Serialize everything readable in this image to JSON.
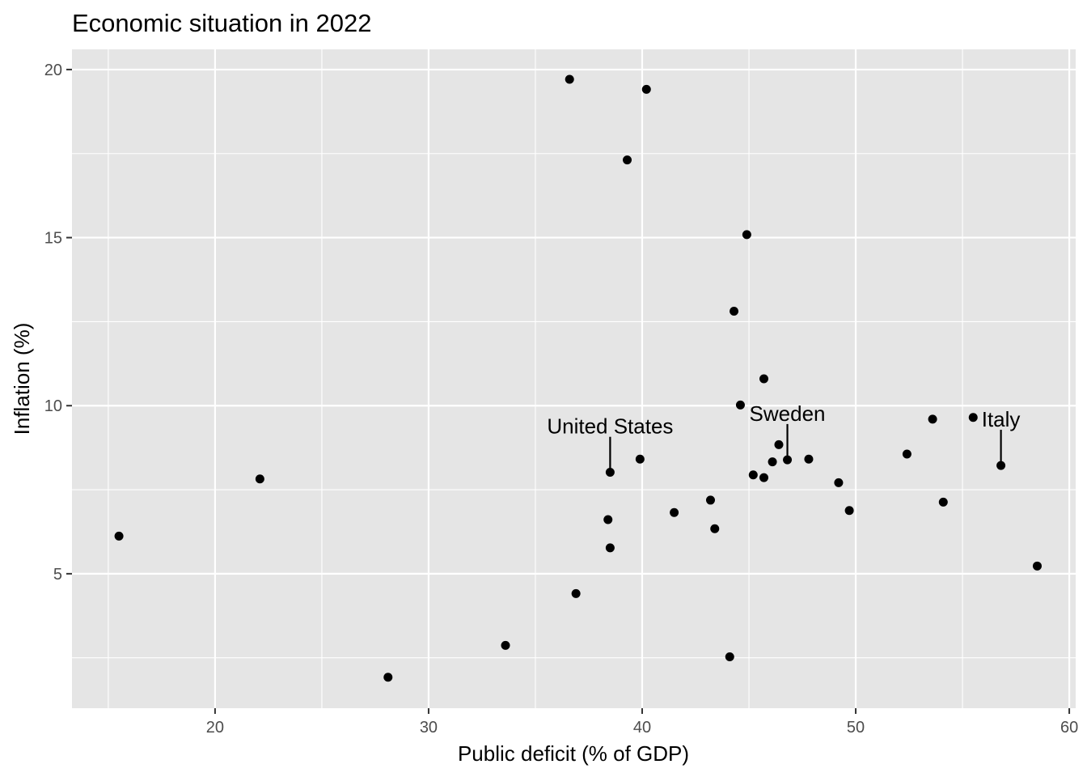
{
  "chart_data": {
    "type": "scatter",
    "title": "Economic situation in 2022",
    "xlabel": "Public deficit (% of GDP)",
    "ylabel": "Inflation (%)",
    "xlim": [
      13.3,
      60.3
    ],
    "ylim": [
      1.0,
      20.6
    ],
    "xticks": [
      20,
      30,
      40,
      50,
      60
    ],
    "yticks": [
      5,
      10,
      15,
      20
    ],
    "grid": true,
    "colors": {
      "panel": "#e5e5e5",
      "grid": "#ffffff",
      "point": "#000000",
      "ticks": "#4d4d4d"
    },
    "points": [
      {
        "x": 15.5,
        "y": 6.12
      },
      {
        "x": 22.1,
        "y": 7.82
      },
      {
        "x": 28.1,
        "y": 1.92
      },
      {
        "x": 33.6,
        "y": 2.87
      },
      {
        "x": 36.6,
        "y": 19.71
      },
      {
        "x": 36.9,
        "y": 4.41
      },
      {
        "x": 38.4,
        "y": 6.61
      },
      {
        "x": 38.5,
        "y": 8.02
      },
      {
        "x": 38.5,
        "y": 5.77
      },
      {
        "x": 39.3,
        "y": 17.31
      },
      {
        "x": 39.9,
        "y": 8.41
      },
      {
        "x": 40.2,
        "y": 19.41
      },
      {
        "x": 41.5,
        "y": 6.82
      },
      {
        "x": 43.2,
        "y": 7.19
      },
      {
        "x": 43.4,
        "y": 6.34
      },
      {
        "x": 44.1,
        "y": 2.53
      },
      {
        "x": 44.3,
        "y": 12.81
      },
      {
        "x": 44.6,
        "y": 10.02
      },
      {
        "x": 44.9,
        "y": 15.09
      },
      {
        "x": 45.2,
        "y": 7.94
      },
      {
        "x": 45.7,
        "y": 10.8
      },
      {
        "x": 45.7,
        "y": 7.86
      },
      {
        "x": 46.1,
        "y": 8.33
      },
      {
        "x": 46.4,
        "y": 8.84
      },
      {
        "x": 46.8,
        "y": 8.39
      },
      {
        "x": 47.8,
        "y": 8.41
      },
      {
        "x": 49.2,
        "y": 7.71
      },
      {
        "x": 49.7,
        "y": 6.88
      },
      {
        "x": 52.4,
        "y": 8.56
      },
      {
        "x": 53.6,
        "y": 9.6
      },
      {
        "x": 54.1,
        "y": 7.13
      },
      {
        "x": 55.5,
        "y": 9.65
      },
      {
        "x": 56.8,
        "y": 8.22
      },
      {
        "x": 58.5,
        "y": 5.23
      }
    ],
    "annotations": [
      {
        "label": "United States",
        "x": 38.5,
        "y": 8.02,
        "label_y": 9.17
      },
      {
        "label": "Sweden",
        "x": 46.8,
        "y": 8.39,
        "label_y": 9.55
      },
      {
        "label": "Italy",
        "x": 56.8,
        "y": 8.22,
        "label_y": 9.38
      }
    ]
  }
}
